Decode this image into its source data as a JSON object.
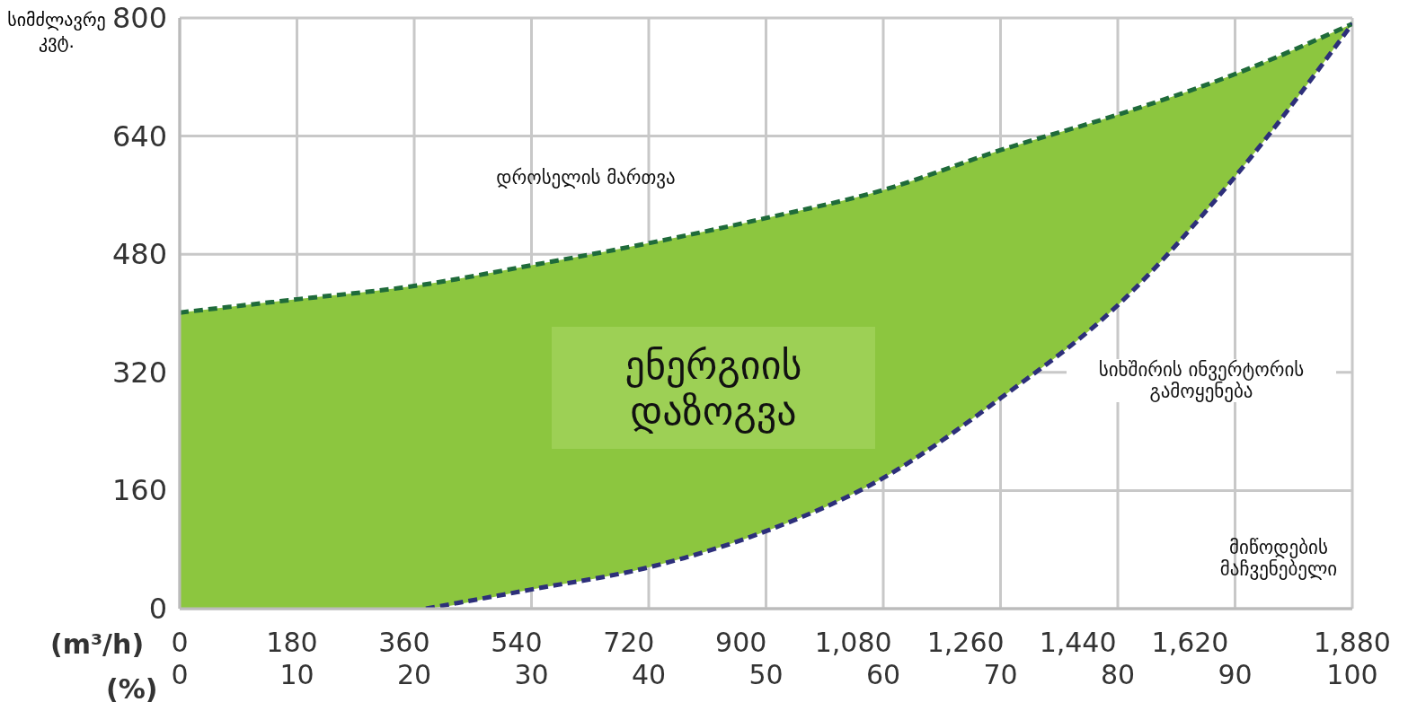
{
  "chart_data": {
    "type": "line",
    "ylabel": "სიმძლავრე კვტ.",
    "xlabel": "(%)",
    "x2label": "(m³/h)",
    "xlim": [
      0,
      100
    ],
    "xticks": [
      0,
      10,
      20,
      30,
      40,
      50,
      60,
      70,
      80,
      90,
      100
    ],
    "x2lim": [
      0,
      1880
    ],
    "x2ticks": [
      0,
      180,
      360,
      540,
      720,
      900,
      {
        "value": 1080,
        "label": "1,080"
      },
      {
        "value": 1260,
        "label": "1,260"
      },
      {
        "value": 1440,
        "label": "1,440"
      },
      {
        "value": 1620,
        "label": "1,620"
      },
      {
        "value": 1880,
        "label": "1,880"
      }
    ],
    "ylim": [
      0,
      800
    ],
    "yticks": [
      0,
      160,
      320,
      480,
      640,
      800
    ],
    "grid": true,
    "legend": false,
    "marker": "none",
    "series": [
      {
        "type": "line",
        "name": "დროსელის მართვა",
        "color": "#1f6b3a",
        "line_style": "dashed",
        "x": [
          0,
          10,
          20,
          30,
          40,
          50,
          60,
          70,
          80,
          90,
          100
        ],
        "values": [
          401,
          419,
          437,
          465,
          495,
          529,
          567,
          621,
          669,
          724,
          792
        ],
        "lower": [
          0,
          0,
          0,
          26,
          56,
          105,
          177,
          285,
          411,
          585,
          792
        ],
        "upper": [
          401,
          419,
          437,
          465,
          495,
          529,
          567,
          621,
          669,
          724,
          792
        ]
      },
      {
        "type": "line",
        "name": "სიხშირის ინვერტორის გამოყენება",
        "color": "#2d2f7a",
        "line_style": "dashed",
        "x": [
          21,
          30,
          40,
          50,
          60,
          70,
          80,
          90,
          100
        ],
        "values": [
          0,
          26,
          56,
          105,
          177,
          285,
          411,
          585,
          792
        ]
      }
    ],
    "annotations": [
      "ენერგიის დაზოგვა",
      "მიწოდების მაჩვენებელი"
    ]
  }
}
